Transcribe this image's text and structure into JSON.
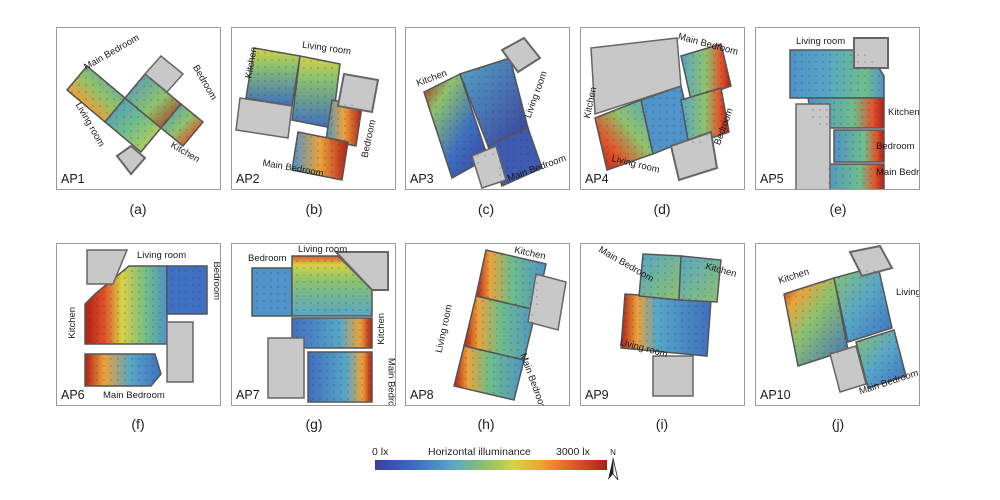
{
  "panels": [
    {
      "id": "AP1",
      "caption": "(a)",
      "rooms": [
        "Main Bedroom",
        "Bedroom",
        "Living room",
        "Kitchen"
      ]
    },
    {
      "id": "AP2",
      "caption": "(b)",
      "rooms": [
        "Kitchen",
        "Living room",
        "Bedroom",
        "Main Bedroom"
      ]
    },
    {
      "id": "AP3",
      "caption": "(c)",
      "rooms": [
        "Kitchen",
        "Living room",
        "Main Bedroom"
      ]
    },
    {
      "id": "AP4",
      "caption": "(d)",
      "rooms": [
        "Main Bedroom",
        "Kitchen",
        "Bedroom",
        "Living room"
      ]
    },
    {
      "id": "AP5",
      "caption": "(e)",
      "rooms": [
        "Living room",
        "Kitchen",
        "Bedroom",
        "Main Bedroom"
      ]
    },
    {
      "id": "AP6",
      "caption": "(f)",
      "rooms": [
        "Living room",
        "Bedroom",
        "Kitchen",
        "Main Bedroom"
      ]
    },
    {
      "id": "AP7",
      "caption": "(g)",
      "rooms": [
        "Bedroom",
        "Living room",
        "Kitchen",
        "Main Bedroom"
      ]
    },
    {
      "id": "AP8",
      "caption": "(h)",
      "rooms": [
        "Kitchen",
        "Living room",
        "Main Bedroom"
      ]
    },
    {
      "id": "AP9",
      "caption": "(i)",
      "rooms": [
        "Main Bedroom",
        "Kitchen",
        "Living room"
      ]
    },
    {
      "id": "AP10",
      "caption": "(j)",
      "rooms": [
        "Kitchen",
        "Living room",
        "Main Bedroom"
      ]
    }
  ],
  "legend": {
    "min_label": "0 lx",
    "title": "Horizontal illuminance",
    "max_label": "3000 lx",
    "range": [
      0,
      3000
    ],
    "colors": [
      "#3a3f9c",
      "#3f6fc0",
      "#57a6c6",
      "#8ec26c",
      "#d6d245",
      "#eca23a",
      "#e0552b",
      "#b21d16"
    ]
  },
  "north_arrow": {
    "label": "N"
  }
}
